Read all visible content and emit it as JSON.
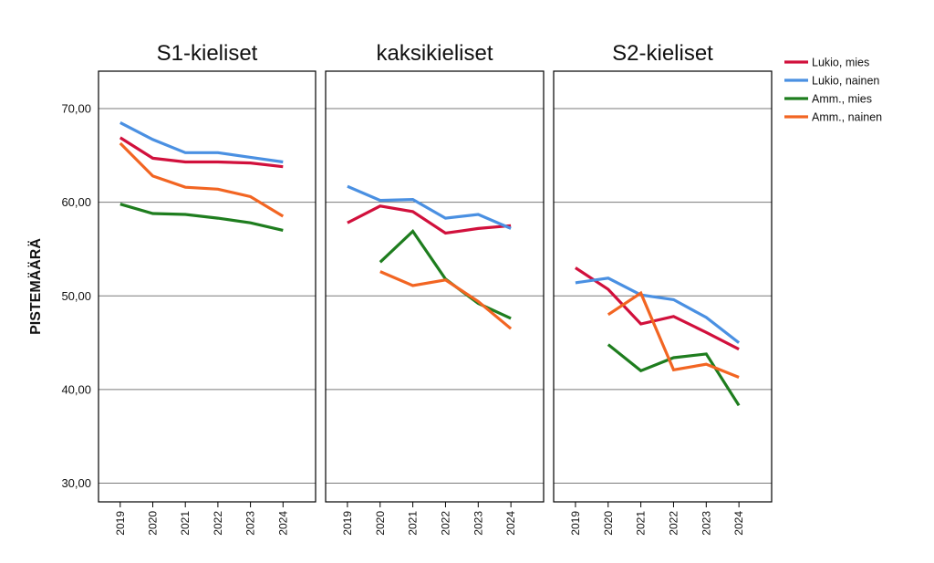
{
  "chart_data": {
    "type": "line",
    "ylabel": "PISTEMÄÄRÄ",
    "ylim": [
      28,
      74
    ],
    "yticks": [
      30,
      40,
      50,
      60,
      70
    ],
    "ytick_labels": [
      "30,00",
      "40,00",
      "50,00",
      "60,00",
      "70,00"
    ],
    "grid": true,
    "x": [
      "2019",
      "2020",
      "2021",
      "2022",
      "2023",
      "2024"
    ],
    "legend": [
      {
        "name": "Lukio, mies",
        "color": "#d1103c"
      },
      {
        "name": "Lukio, nainen",
        "color": "#4a90e2"
      },
      {
        "name": "Amm., mies",
        "color": "#1e7d1e"
      },
      {
        "name": "Amm., nainen",
        "color": "#f26522"
      }
    ],
    "panels": [
      {
        "title": "S1-kieliset",
        "series": [
          {
            "name": "Lukio, mies",
            "values": [
              66.9,
              64.7,
              64.3,
              64.3,
              64.2,
              63.8
            ]
          },
          {
            "name": "Lukio, nainen",
            "values": [
              68.5,
              66.7,
              65.3,
              65.3,
              64.8,
              64.3
            ]
          },
          {
            "name": "Amm., mies",
            "values": [
              59.8,
              58.8,
              58.7,
              58.3,
              57.8,
              57.0
            ]
          },
          {
            "name": "Amm., nainen",
            "values": [
              66.3,
              62.8,
              61.6,
              61.4,
              60.6,
              58.5
            ]
          }
        ]
      },
      {
        "title": "kaksikieliset",
        "series": [
          {
            "name": "Lukio, mies",
            "values": [
              57.8,
              59.6,
              59.0,
              56.7,
              57.2,
              57.5
            ]
          },
          {
            "name": "Lukio, nainen",
            "values": [
              61.7,
              60.2,
              60.3,
              58.3,
              58.7,
              57.2
            ]
          },
          {
            "name": "Amm., mies",
            "values": [
              null,
              53.6,
              56.9,
              51.8,
              49.2,
              47.6
            ]
          },
          {
            "name": "Amm., nainen",
            "values": [
              null,
              52.6,
              51.1,
              51.7,
              49.4,
              46.5
            ]
          }
        ]
      },
      {
        "title": "S2-kieliset",
        "series": [
          {
            "name": "Lukio, mies",
            "values": [
              53.0,
              50.7,
              47.0,
              47.8,
              46.1,
              44.3
            ]
          },
          {
            "name": "Lukio, nainen",
            "values": [
              51.4,
              51.9,
              50.1,
              49.6,
              47.7,
              45.0
            ]
          },
          {
            "name": "Amm., mies",
            "values": [
              null,
              44.8,
              42.0,
              43.4,
              43.8,
              38.3
            ]
          },
          {
            "name": "Amm., nainen",
            "values": [
              null,
              48.0,
              50.3,
              42.1,
              42.7,
              41.3
            ]
          }
        ]
      }
    ]
  }
}
